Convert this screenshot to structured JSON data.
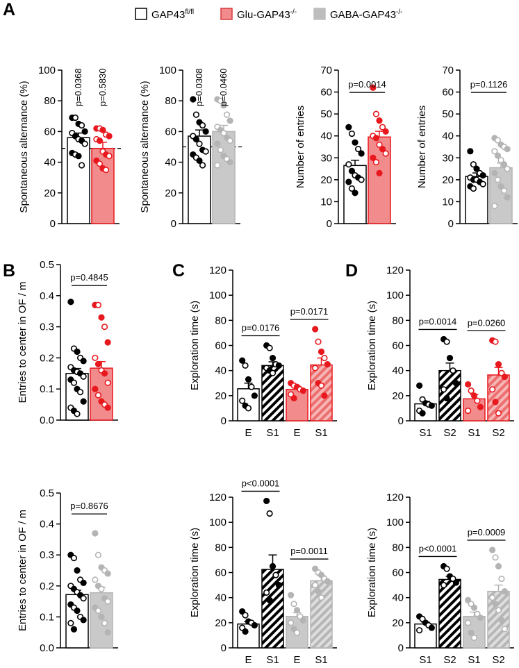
{
  "figure": {
    "panel_letters": [
      "A",
      "B",
      "C",
      "D"
    ]
  },
  "legend": {
    "items": [
      {
        "label": "GAP43",
        "sup": "fl/fl",
        "fill": "#ffffff",
        "stroke": "#000000"
      },
      {
        "label": "Glu-GAP43",
        "sup": "-/-",
        "fill": "#f28b8b",
        "stroke": "#d83a3a"
      },
      {
        "label": "GABA-GAP43",
        "sup": "-/-",
        "fill": "#bdbdbd",
        "stroke": "#bdbdbd"
      }
    ]
  },
  "colors": {
    "control": "#000000",
    "glu": "#e8191e",
    "glu_fill": "#f28b8b",
    "gaba": "#b4b4b4",
    "gaba_fill": "#c9c9c9"
  },
  "chart_data": [
    {
      "id": "A1",
      "type": "bar",
      "ylabel": "Spontaneous alternance (%)",
      "ylim": [
        0,
        100
      ],
      "yticks": [
        0,
        20,
        40,
        60,
        80,
        100
      ],
      "categories": [
        "GAP43fl/fl",
        "Glu-GAP43-/-"
      ],
      "groups": [
        "ctrl",
        "glu"
      ],
      "values": [
        56,
        49
      ],
      "sem": [
        3,
        4
      ],
      "points": [
        [
          69,
          69,
          65,
          64,
          60,
          59,
          57,
          55,
          54,
          52,
          46,
          45,
          44,
          38
        ],
        [
          62,
          62,
          61,
          58,
          57,
          55,
          54,
          47,
          45,
          44,
          41,
          39,
          36,
          35
        ]
      ],
      "pvalues": [
        "p=0.0368",
        "p=0.5830"
      ],
      "p_style": "vertical",
      "chance_line": 49
    },
    {
      "id": "A2",
      "type": "bar",
      "ylabel": "Spontaneous alternance (%)",
      "ylim": [
        0,
        100
      ],
      "yticks": [
        0,
        20,
        40,
        60,
        80,
        100
      ],
      "categories": [
        "GAP43fl/fl",
        "GABA-GAP43-/-"
      ],
      "groups": [
        "ctrl",
        "gaba"
      ],
      "values": [
        57,
        60
      ],
      "sem": [
        4,
        4
      ],
      "points": [
        [
          81,
          71,
          66,
          64,
          60,
          57,
          55,
          52,
          48,
          47,
          45,
          43,
          41,
          38
        ],
        [
          81,
          80,
          77,
          71,
          67,
          63,
          61,
          59,
          56,
          54,
          52,
          48,
          44,
          42,
          40,
          38
        ]
      ],
      "pvalues": [
        "p=0.0308",
        "p=0.0460"
      ],
      "p_style": "vertical",
      "chance_line": 50
    },
    {
      "id": "A3",
      "type": "bar",
      "ylabel": "Number of entries",
      "ylim": [
        0,
        70
      ],
      "yticks": [
        0,
        10,
        20,
        30,
        40,
        50,
        60,
        70
      ],
      "categories": [
        "GAP43fl/fl",
        "Glu-GAP43-/-"
      ],
      "groups": [
        "ctrl",
        "glu"
      ],
      "values": [
        26.5,
        39.5
      ],
      "sem": [
        2.4,
        2.6
      ],
      "points": [
        [
          44,
          41,
          37,
          34,
          32,
          27,
          24,
          22,
          21,
          20,
          19,
          16,
          14
        ],
        [
          62,
          50,
          47,
          44,
          42,
          40,
          39,
          36,
          34,
          32,
          30,
          28,
          23
        ]
      ],
      "pvalues": [
        "p=0.0014"
      ],
      "p_style": "bracket"
    },
    {
      "id": "A4",
      "type": "bar",
      "ylabel": "Number of entries",
      "ylim": [
        0,
        70
      ],
      "yticks": [
        0,
        10,
        20,
        30,
        40,
        50,
        60,
        70
      ],
      "categories": [
        "GAP43fl/fl",
        "GABA-GAP43-/-"
      ],
      "groups": [
        "ctrl",
        "gaba"
      ],
      "values": [
        21.5,
        25.5
      ],
      "sem": [
        1.6,
        2.1
      ],
      "points": [
        [
          33,
          27,
          25,
          23,
          22,
          21,
          20,
          20,
          19,
          18,
          17,
          16
        ],
        [
          39,
          38,
          36,
          35,
          34,
          33,
          31,
          29,
          27,
          25,
          23,
          20,
          17,
          15,
          12,
          8
        ]
      ],
      "pvalues": [
        "p=0.1126"
      ],
      "p_style": "bracket"
    },
    {
      "id": "B1",
      "type": "bar",
      "ylabel": "Entries to center in OF / m",
      "ylim": [
        0,
        0.5
      ],
      "yticks": [
        0.0,
        0.1,
        0.2,
        0.3,
        0.4,
        0.5
      ],
      "categories": [
        "GAP43fl/fl",
        "Glu-GAP43-/-"
      ],
      "groups": [
        "ctrl",
        "glu"
      ],
      "values": [
        0.15,
        0.167
      ],
      "sem": [
        0.016,
        0.021
      ],
      "points": [
        [
          0.38,
          0.23,
          0.22,
          0.2,
          0.19,
          0.17,
          0.16,
          0.155,
          0.15,
          0.14,
          0.13,
          0.12,
          0.1,
          0.09,
          0.06,
          0.04,
          0.03,
          0.02
        ],
        [
          0.37,
          0.37,
          0.33,
          0.3,
          0.25,
          0.2,
          0.18,
          0.16,
          0.15,
          0.12,
          0.1,
          0.08,
          0.06,
          0.05,
          0.04
        ]
      ],
      "pvalues": [
        "p=0.4845"
      ],
      "p_style": "bracket"
    },
    {
      "id": "B2",
      "type": "bar",
      "ylabel": "Entries to center in OF / m",
      "ylim": [
        0,
        0.5
      ],
      "yticks": [
        0.0,
        0.1,
        0.2,
        0.3,
        0.4,
        0.5
      ],
      "categories": [
        "GAP43fl/fl",
        "GABA-GAP43-/-"
      ],
      "groups": [
        "ctrl",
        "gaba"
      ],
      "values": [
        0.172,
        0.178
      ],
      "sem": [
        0.014,
        0.018
      ],
      "points": [
        [
          0.3,
          0.29,
          0.25,
          0.22,
          0.21,
          0.2,
          0.19,
          0.18,
          0.17,
          0.16,
          0.14,
          0.13,
          0.12,
          0.1,
          0.09,
          0.08,
          0.06
        ],
        [
          0.37,
          0.3,
          0.26,
          0.25,
          0.24,
          0.22,
          0.2,
          0.19,
          0.16,
          0.15,
          0.13,
          0.12,
          0.1,
          0.08,
          0.05
        ]
      ],
      "pvalues": [
        "p=0.8676"
      ],
      "p_style": "bracket"
    },
    {
      "id": "C1",
      "type": "bar",
      "ylabel": "Exploration time (s)",
      "ylim": [
        0,
        120
      ],
      "yticks": [
        0,
        20,
        40,
        60,
        80,
        100,
        120
      ],
      "categories": [
        "E",
        "S1",
        "E",
        "S1"
      ],
      "groups": [
        "ctrl",
        "ctrl",
        "glu",
        "glu"
      ],
      "hatched": [
        false,
        true,
        false,
        true
      ],
      "values": [
        25.5,
        44,
        25,
        44.5
      ],
      "sem": [
        4.5,
        3,
        2.5,
        5.5
      ],
      "points": [
        [
          48,
          44,
          33,
          27,
          20,
          16,
          12,
          10
        ],
        [
          60,
          58,
          50,
          45,
          44,
          42,
          40,
          38
        ],
        [
          30,
          28,
          27,
          25,
          24,
          21,
          18
        ],
        [
          73,
          63,
          55,
          50,
          45,
          42,
          30,
          28,
          20
        ]
      ],
      "pvalues": [
        "p=0.0176",
        "p=0.0171"
      ],
      "p_style": "pairs"
    },
    {
      "id": "C2",
      "type": "bar",
      "ylabel": "Exploration time (s)",
      "ylim": [
        0,
        120
      ],
      "yticks": [
        0,
        20,
        40,
        60,
        80,
        100,
        120
      ],
      "categories": [
        "E",
        "S1",
        "E",
        "S1"
      ],
      "groups": [
        "ctrl",
        "ctrl",
        "gaba",
        "gaba"
      ],
      "hatched": [
        false,
        true,
        false,
        true
      ],
      "values": [
        19,
        62.5,
        25,
        53.5
      ],
      "sem": [
        2,
        11.5,
        3,
        4
      ],
      "points": [
        [
          29,
          26,
          21,
          20,
          18,
          16,
          13
        ],
        [
          117,
          107,
          65,
          58,
          50,
          44,
          38
        ],
        [
          42,
          35,
          30,
          25,
          22,
          20,
          15,
          12
        ],
        [
          63,
          60,
          58,
          55,
          53,
          50,
          45,
          40
        ]
      ],
      "pvalues": [
        "p<0.0001",
        "p=0.0011"
      ],
      "p_style": "pairs"
    },
    {
      "id": "D1",
      "type": "bar",
      "ylabel": "Exploration time (s)",
      "ylim": [
        0,
        120
      ],
      "yticks": [
        0,
        20,
        40,
        60,
        80,
        100,
        120
      ],
      "categories": [
        "S1",
        "S2",
        "S1",
        "S2"
      ],
      "groups": [
        "ctrl",
        "ctrl",
        "glu",
        "glu"
      ],
      "hatched": [
        false,
        true,
        false,
        true
      ],
      "values": [
        13.5,
        40,
        17.5,
        36.5
      ],
      "sem": [
        2,
        6,
        3.5,
        6
      ],
      "points": [
        [
          28,
          17,
          14,
          13,
          12,
          8,
          6
        ],
        [
          65,
          63,
          50,
          40,
          30,
          25,
          18
        ],
        [
          29,
          24,
          20,
          16,
          11,
          8
        ],
        [
          64,
          63,
          45,
          38,
          35,
          25,
          15,
          6
        ]
      ],
      "pvalues": [
        "p=0.0014",
        "p=0.0260"
      ],
      "p_style": "pairs"
    },
    {
      "id": "D2",
      "type": "bar",
      "ylabel": "Exploration time (s)",
      "ylim": [
        0,
        120
      ],
      "yticks": [
        0,
        20,
        40,
        60,
        80,
        100,
        120
      ],
      "categories": [
        "S1",
        "S2",
        "S1",
        "S2"
      ],
      "groups": [
        "ctrl",
        "ctrl",
        "gaba",
        "gaba"
      ],
      "hatched": [
        false,
        true,
        false,
        true
      ],
      "values": [
        19,
        54.5,
        25,
        45
      ],
      "sem": [
        1.5,
        2.5,
        3.5,
        5
      ],
      "points": [
        [
          25,
          23,
          20,
          18,
          16,
          14
        ],
        [
          65,
          63,
          57,
          55,
          52,
          50
        ],
        [
          38,
          35,
          32,
          27,
          24,
          20,
          12,
          8
        ],
        [
          78,
          72,
          65,
          55,
          45,
          40,
          35,
          30,
          22,
          15
        ]
      ],
      "pvalues": [
        "p<0.0001",
        "p=0.0009"
      ],
      "p_style": "pairs"
    }
  ]
}
